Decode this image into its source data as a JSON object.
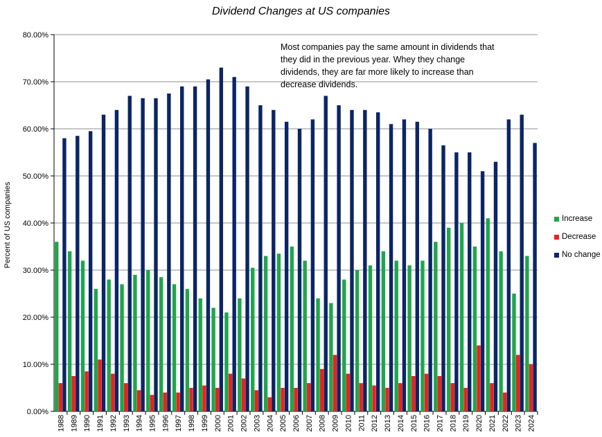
{
  "chart_data": {
    "type": "bar",
    "title": "Dividend Changes at US companies",
    "xlabel": "",
    "ylabel": "Percent of US companies",
    "ylim": [
      0,
      80
    ],
    "yticks": [
      "0.00%",
      "10.00%",
      "20.00%",
      "30.00%",
      "40.00%",
      "50.00%",
      "60.00%",
      "70.00%",
      "80.00%"
    ],
    "grid": true,
    "legend_position": "right",
    "annotation": "Most companies pay the same amount in dividends that they did in the previous year. Whey they change dividends, they are far more likely to increase than decrease dividends.",
    "categories": [
      "1988",
      "1989",
      "1990",
      "1991",
      "1992",
      "1993",
      "1994",
      "1995",
      "1996",
      "1997",
      "1998",
      "1999",
      "2000",
      "2001",
      "2002",
      "2003",
      "2004",
      "2005",
      "2006",
      "2007",
      "2008",
      "2009",
      "2010",
      "2011",
      "2012",
      "2013",
      "2014",
      "2015",
      "2016",
      "2017",
      "2018",
      "2019",
      "2020",
      "2021",
      "2022",
      "2023",
      "2024"
    ],
    "series": [
      {
        "name": "Increase",
        "color": "#1fa64a",
        "values": [
          36,
          34,
          32,
          26,
          28,
          27,
          29,
          30,
          28.5,
          27,
          26,
          24,
          22,
          21,
          24,
          30.5,
          33,
          33.5,
          35,
          32,
          24,
          23,
          28,
          30,
          31,
          34,
          32,
          31,
          32,
          36,
          39,
          40,
          35,
          41,
          34,
          25,
          33
        ]
      },
      {
        "name": "Decrease",
        "color": "#e8231f",
        "values": [
          6,
          7.5,
          8.5,
          11,
          8,
          6,
          4.5,
          3.5,
          4,
          4,
          5,
          5.5,
          5,
          8,
          7,
          4.5,
          3,
          5,
          5,
          6,
          9,
          12,
          8,
          6,
          5.5,
          5,
          6,
          7.5,
          8,
          7.5,
          6,
          5,
          14,
          6,
          4,
          12,
          10
        ]
      },
      {
        "name": "No change",
        "color": "#0b2566",
        "values": [
          58,
          58.5,
          59.5,
          63,
          64,
          67,
          66.5,
          66.5,
          67.5,
          69,
          69,
          70.5,
          73,
          71,
          69,
          65,
          64,
          61.5,
          60,
          62,
          67,
          65,
          64,
          64,
          63.5,
          61,
          62,
          61.5,
          60,
          56.5,
          55,
          55,
          51,
          53,
          62,
          63,
          57
        ]
      }
    ]
  }
}
